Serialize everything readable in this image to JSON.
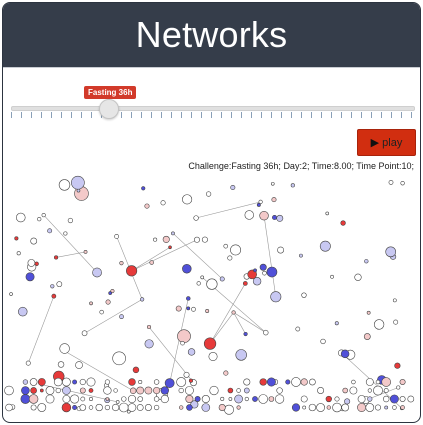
{
  "header": {
    "title": "Networks"
  },
  "slider": {
    "label": "Fasting 36h",
    "position_fraction": 0.23
  },
  "controls": {
    "play_label": "play",
    "play_icon": "play-triangle-icon",
    "accent": "#d12e10"
  },
  "status": {
    "text": "Challenge:Fasting 36h; Day:2; Time:8.00; Time Point:10;"
  },
  "colors": {
    "header_bg": "#353d4a",
    "node_red": "#e22b2b",
    "node_blue": "#3a3ad0",
    "node_neutral": "#ffffff"
  }
}
